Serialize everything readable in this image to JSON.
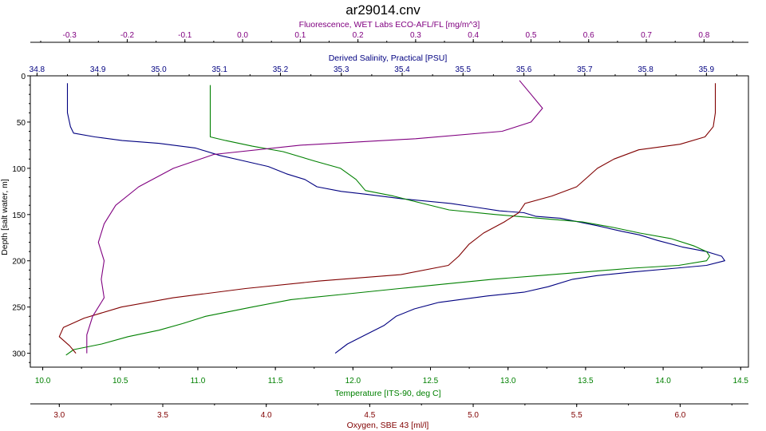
{
  "chart_data": {
    "type": "line",
    "title": "ar29014.cnv",
    "ylabel": "Depth [salt water, m]",
    "ylim": [
      0,
      315
    ],
    "yticks": [
      0,
      50,
      100,
      150,
      200,
      250,
      300
    ],
    "grid": false,
    "axes": {
      "fluorescence": {
        "label": "Fluorescence, WET Labs ECO-AFL/FL [mg/m^3]",
        "position": "top-outer",
        "color": "#800080",
        "range": [
          -0.368,
          0.877
        ],
        "ticks": [
          -0.3,
          -0.2,
          -0.1,
          0.0,
          0.1,
          0.2,
          0.3,
          0.4,
          0.5,
          0.6,
          0.7,
          0.8
        ],
        "tick_labels": [
          "-0.3",
          "-0.2",
          "-0.1",
          "0.0",
          "0.1",
          "0.2",
          "0.3",
          "0.4",
          "0.5",
          "0.6",
          "0.7",
          "0.8"
        ]
      },
      "salinity": {
        "label": "Derived Salinity, Practical [PSU]",
        "position": "top-inner",
        "color": "#000080",
        "range": [
          34.789,
          35.969
        ],
        "ticks": [
          34.8,
          34.9,
          35.0,
          35.1,
          35.2,
          35.3,
          35.4,
          35.5,
          35.6,
          35.7,
          35.8,
          35.9
        ],
        "tick_labels": [
          "34.8",
          "34.9",
          "35.0",
          "35.1",
          "35.2",
          "35.3",
          "35.4",
          "35.5",
          "35.6",
          "35.7",
          "35.8",
          "35.9"
        ]
      },
      "temperature": {
        "label": "Temperature [ITS-90, deg C]",
        "position": "bottom-inner",
        "color": "#008000",
        "range": [
          9.92,
          14.55
        ],
        "ticks": [
          10.0,
          10.5,
          11.0,
          11.5,
          12.0,
          12.5,
          13.0,
          13.5,
          14.0,
          14.5
        ],
        "tick_labels": [
          "10.0",
          "10.5",
          "11.0",
          "11.5",
          "12.0",
          "12.5",
          "13.0",
          "13.5",
          "14.0",
          "14.5"
        ]
      },
      "oxygen": {
        "label": "Oxygen, SBE 43 [ml/l]",
        "position": "bottom-outer",
        "color": "#800000",
        "range": [
          2.86,
          6.33
        ],
        "ticks": [
          3.0,
          3.5,
          4.0,
          4.5,
          5.0,
          5.5,
          6.0
        ],
        "tick_labels": [
          "3.0",
          "3.5",
          "4.0",
          "4.5",
          "5.0",
          "5.5",
          "6.0"
        ]
      }
    },
    "series": [
      {
        "name": "Derived Salinity, Practical [PSU]",
        "axis": "salinity",
        "color": "#000080",
        "points": [
          [
            34.85,
            8
          ],
          [
            34.85,
            20
          ],
          [
            34.85,
            40
          ],
          [
            34.855,
            55
          ],
          [
            34.86,
            62
          ],
          [
            34.895,
            66
          ],
          [
            34.94,
            70
          ],
          [
            35.0,
            73
          ],
          [
            35.06,
            78
          ],
          [
            35.1,
            86
          ],
          [
            35.14,
            92
          ],
          [
            35.18,
            98
          ],
          [
            35.21,
            106
          ],
          [
            35.24,
            112
          ],
          [
            35.26,
            120
          ],
          [
            35.3,
            125
          ],
          [
            35.34,
            128
          ],
          [
            35.4,
            133
          ],
          [
            35.48,
            138
          ],
          [
            35.52,
            142
          ],
          [
            35.56,
            146
          ],
          [
            35.6,
            148
          ],
          [
            35.62,
            152
          ],
          [
            35.66,
            154
          ],
          [
            35.69,
            158
          ],
          [
            35.72,
            162
          ],
          [
            35.76,
            168
          ],
          [
            35.79,
            172
          ],
          [
            35.82,
            178
          ],
          [
            35.86,
            185
          ],
          [
            35.9,
            190
          ],
          [
            35.925,
            195
          ],
          [
            35.93,
            200
          ],
          [
            35.9,
            205
          ],
          [
            35.85,
            208
          ],
          [
            35.78,
            212
          ],
          [
            35.72,
            216
          ],
          [
            35.68,
            220
          ],
          [
            35.64,
            228
          ],
          [
            35.6,
            234
          ],
          [
            35.54,
            238
          ],
          [
            35.46,
            245
          ],
          [
            35.42,
            252
          ],
          [
            35.39,
            260
          ],
          [
            35.37,
            270
          ],
          [
            35.34,
            280
          ],
          [
            35.31,
            290
          ],
          [
            35.29,
            300
          ]
        ]
      },
      {
        "name": "Temperature [ITS-90, deg C]",
        "axis": "temperature",
        "color": "#008000",
        "points": [
          [
            11.08,
            10
          ],
          [
            11.08,
            30
          ],
          [
            11.08,
            50
          ],
          [
            11.08,
            66
          ],
          [
            11.18,
            70
          ],
          [
            11.35,
            76
          ],
          [
            11.55,
            82
          ],
          [
            11.75,
            92
          ],
          [
            11.92,
            100
          ],
          [
            12.02,
            112
          ],
          [
            12.08,
            124
          ],
          [
            12.26,
            130
          ],
          [
            12.45,
            138
          ],
          [
            12.62,
            145
          ],
          [
            12.92,
            150
          ],
          [
            13.2,
            154
          ],
          [
            13.48,
            158
          ],
          [
            13.68,
            164
          ],
          [
            13.85,
            170
          ],
          [
            14.05,
            176
          ],
          [
            14.2,
            184
          ],
          [
            14.28,
            190
          ],
          [
            14.3,
            195
          ],
          [
            14.28,
            200
          ],
          [
            14.1,
            205
          ],
          [
            13.8,
            208
          ],
          [
            13.5,
            212
          ],
          [
            13.2,
            216
          ],
          [
            12.9,
            220
          ],
          [
            12.6,
            225
          ],
          [
            12.3,
            230
          ],
          [
            11.95,
            236
          ],
          [
            11.6,
            242
          ],
          [
            11.35,
            250
          ],
          [
            11.05,
            260
          ],
          [
            10.9,
            268
          ],
          [
            10.75,
            275
          ],
          [
            10.55,
            282
          ],
          [
            10.38,
            290
          ],
          [
            10.2,
            296
          ],
          [
            10.15,
            302
          ]
        ]
      },
      {
        "name": "Oxygen, SBE 43 [ml/l]",
        "axis": "oxygen",
        "color": "#800000",
        "points": [
          [
            6.17,
            8
          ],
          [
            6.17,
            25
          ],
          [
            6.17,
            40
          ],
          [
            6.16,
            55
          ],
          [
            6.12,
            66
          ],
          [
            6.0,
            74
          ],
          [
            5.8,
            80
          ],
          [
            5.68,
            90
          ],
          [
            5.6,
            100
          ],
          [
            5.55,
            110
          ],
          [
            5.5,
            120
          ],
          [
            5.38,
            130
          ],
          [
            5.25,
            138
          ],
          [
            5.22,
            148
          ],
          [
            5.15,
            158
          ],
          [
            5.05,
            170
          ],
          [
            4.98,
            182
          ],
          [
            4.93,
            195
          ],
          [
            4.88,
            205
          ],
          [
            4.65,
            215
          ],
          [
            4.25,
            222
          ],
          [
            3.9,
            230
          ],
          [
            3.55,
            240
          ],
          [
            3.3,
            250
          ],
          [
            3.12,
            262
          ],
          [
            3.02,
            272
          ],
          [
            3.0,
            282
          ],
          [
            3.05,
            292
          ],
          [
            3.08,
            300
          ]
        ]
      },
      {
        "name": "Fluorescence, WET Labs ECO-AFL/FL [mg/m^3]",
        "axis": "fluorescence",
        "color": "#800080",
        "points": [
          [
            0.48,
            5
          ],
          [
            0.5,
            20
          ],
          [
            0.52,
            35
          ],
          [
            0.5,
            50
          ],
          [
            0.45,
            60
          ],
          [
            0.3,
            68
          ],
          [
            0.1,
            75
          ],
          [
            -0.05,
            85
          ],
          [
            -0.12,
            100
          ],
          [
            -0.18,
            120
          ],
          [
            -0.22,
            140
          ],
          [
            -0.24,
            160
          ],
          [
            -0.25,
            180
          ],
          [
            -0.24,
            200
          ],
          [
            -0.245,
            220
          ],
          [
            -0.24,
            240
          ],
          [
            -0.26,
            260
          ],
          [
            -0.27,
            280
          ],
          [
            -0.27,
            300
          ]
        ]
      }
    ]
  }
}
